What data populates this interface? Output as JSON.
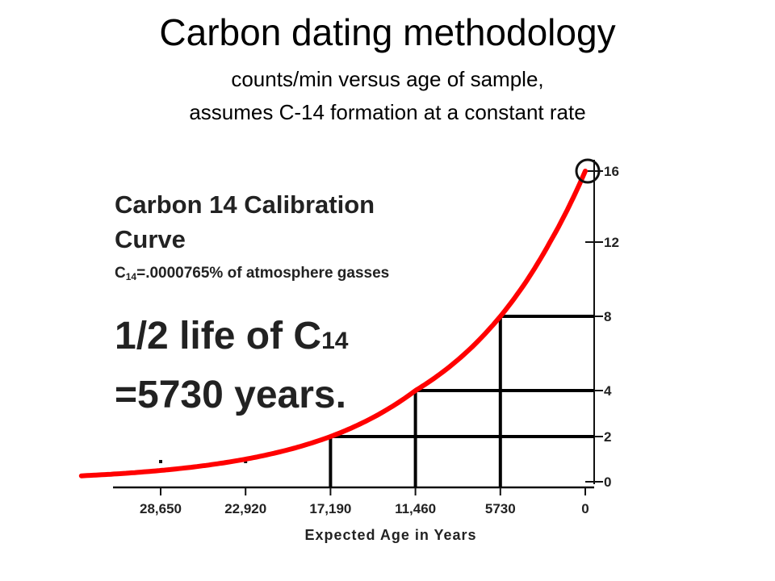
{
  "slide": {
    "title": "Carbon dating methodology",
    "subtitle_line1": "counts/min versus age of sample,",
    "subtitle_line2": "assumes C-14 formation at a constant rate"
  },
  "panel": {
    "title_line1": "Carbon 14 Calibration",
    "title_line2": "Curve",
    "formula_c": "C",
    "formula_sub": "14",
    "formula_rest": "=.0000765% of atmosphere gasses",
    "halflife_line1_pre": "1/2 life of C",
    "halflife_line1_sub": "14",
    "halflife_line2": "=5730 years."
  },
  "chart_data": {
    "type": "line",
    "xlabel": "Expected Age in Years",
    "ylabel": "",
    "x_ticks": [
      28650,
      22920,
      17190,
      11460,
      5730,
      0
    ],
    "x_tick_labels": [
      "28,650",
      "22,920",
      "17,190",
      "11,460",
      "5730",
      "0"
    ],
    "y_ticks": [
      0,
      2,
      4,
      8,
      12,
      16
    ],
    "y_tick_labels": [
      "0",
      "2",
      "4",
      "8",
      "12",
      "16"
    ],
    "x_reversed": true,
    "series": [
      {
        "color": "#ff0000",
        "x": [
          0,
          5730,
          11460,
          17190,
          22920,
          28650,
          34000
        ],
        "y": [
          16,
          8,
          4,
          2,
          1,
          0.5,
          0.25
        ]
      }
    ],
    "halflife_marks": [
      {
        "x": 5730,
        "y": 8
      },
      {
        "x": 11460,
        "y": 4
      },
      {
        "x": 17190,
        "y": 2
      }
    ],
    "circled_point": {
      "x": 0,
      "y": 16
    },
    "grid": false
  }
}
